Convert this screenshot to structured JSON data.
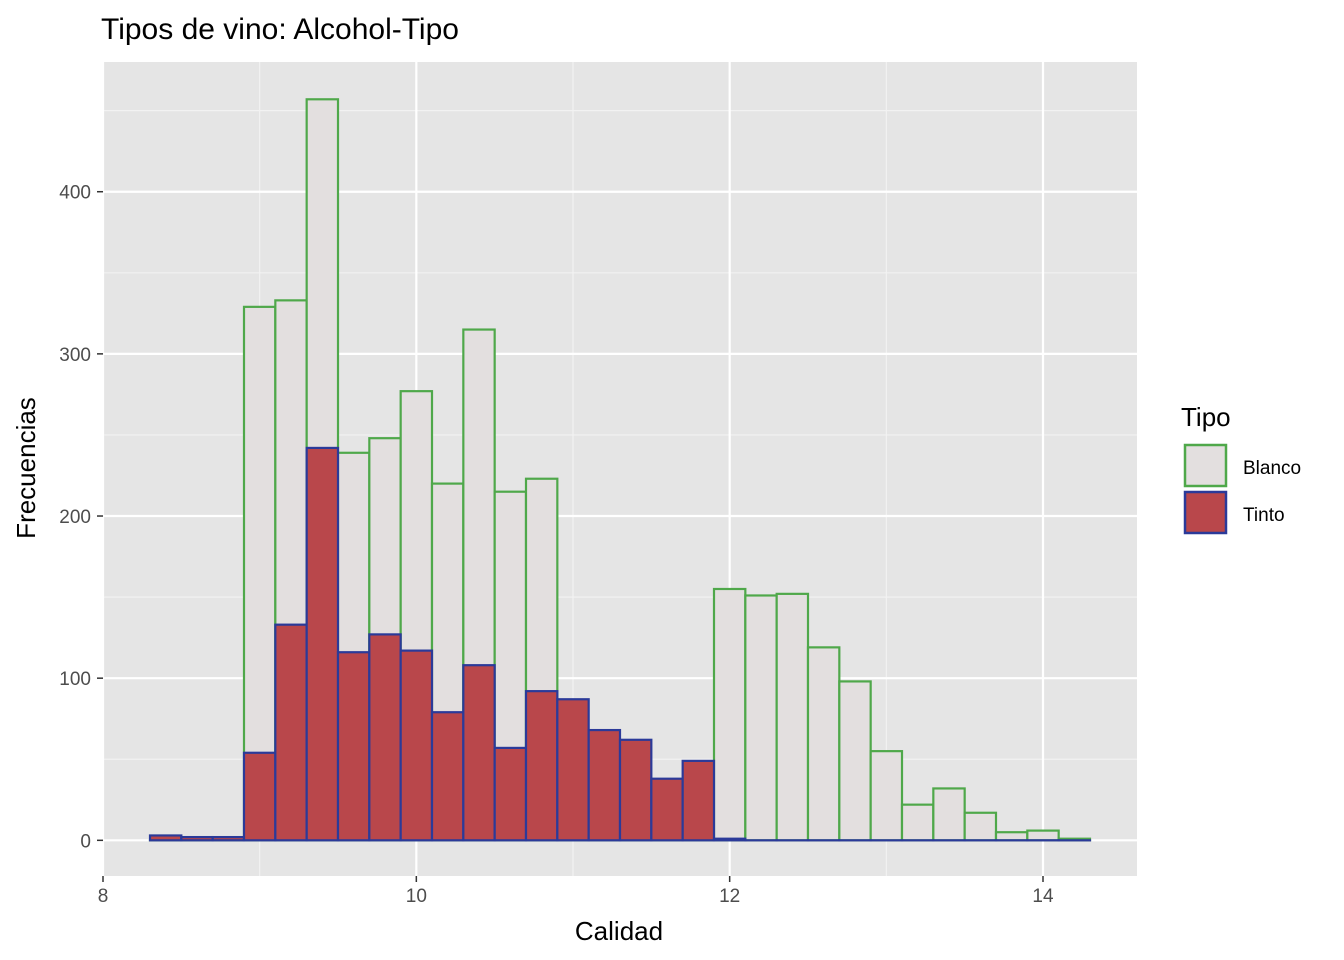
{
  "chart_data": {
    "type": "bar",
    "subtype": "overlapping-histogram",
    "title": "Tipos de vino: Alcohol-Tipo",
    "xlabel": "Calidad",
    "ylabel": "Frecuencias",
    "xlim": [
      8.0,
      14.6
    ],
    "ylim": [
      -22,
      480
    ],
    "x_ticks": [
      8,
      10,
      12,
      14
    ],
    "x_tick_labels": [
      "8",
      "10",
      "12",
      "14"
    ],
    "y_ticks": [
      0,
      100,
      200,
      300,
      400
    ],
    "y_tick_labels": [
      "0",
      "100",
      "200",
      "300",
      "400"
    ],
    "grid": true,
    "bin_width": 0.2,
    "bin_starts": [
      8.3,
      8.5,
      8.7,
      8.9,
      9.1,
      9.3,
      9.5,
      9.7,
      9.9,
      10.1,
      10.3,
      10.5,
      10.7,
      10.9,
      11.1,
      11.3,
      11.5,
      11.7,
      11.9,
      12.1,
      12.3,
      12.5,
      12.7,
      12.9,
      13.1,
      13.3,
      13.5,
      13.7,
      13.9,
      14.1
    ],
    "legend": {
      "title": "Tipo",
      "position": "right"
    },
    "series": [
      {
        "name": "Blanco",
        "fill": "#e3dfdf",
        "stroke": "#4fa84a",
        "values": [
          0,
          0,
          0,
          329,
          333,
          457,
          239,
          248,
          277,
          220,
          315,
          215,
          223,
          0,
          0,
          0,
          0,
          0,
          155,
          151,
          152,
          119,
          98,
          55,
          22,
          32,
          17,
          5,
          6,
          1
        ]
      },
      {
        "name": "Tinto",
        "fill": "#b9474b",
        "stroke": "#2b3a99",
        "values": [
          3,
          2,
          2,
          54,
          133,
          242,
          116,
          127,
          117,
          79,
          108,
          57,
          92,
          87,
          68,
          62,
          38,
          49,
          1,
          0,
          0,
          0,
          0,
          0,
          0,
          0,
          0,
          0,
          0,
          0
        ]
      }
    ]
  }
}
